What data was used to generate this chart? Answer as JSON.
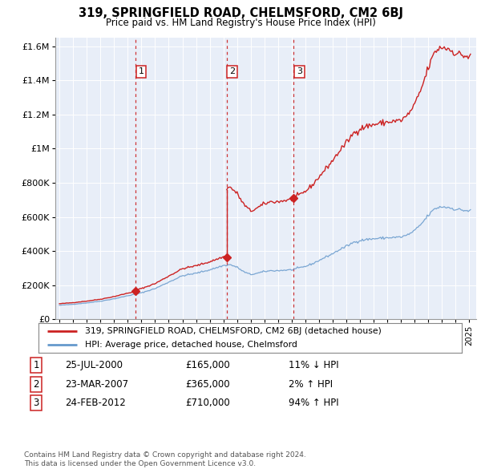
{
  "title": "319, SPRINGFIELD ROAD, CHELMSFORD, CM2 6BJ",
  "subtitle": "Price paid vs. HM Land Registry's House Price Index (HPI)",
  "legend_line1": "319, SPRINGFIELD ROAD, CHELMSFORD, CM2 6BJ (detached house)",
  "legend_line2": "HPI: Average price, detached house, Chelmsford",
  "footer1": "Contains HM Land Registry data © Crown copyright and database right 2024.",
  "footer2": "This data is licensed under the Open Government Licence v3.0.",
  "transactions": [
    {
      "num": 1,
      "date": "25-JUL-2000",
      "price": "£165,000",
      "hpi": "11% ↓ HPI",
      "year": 2000.57
    },
    {
      "num": 2,
      "date": "23-MAR-2007",
      "price": "£365,000",
      "hpi": "2% ↑ HPI",
      "year": 2007.23
    },
    {
      "num": 3,
      "date": "24-FEB-2012",
      "price": "£710,000",
      "hpi": "94% ↑ HPI",
      "year": 2012.15
    }
  ],
  "transaction_prices": [
    165000,
    365000,
    710000
  ],
  "hpi_color": "#6699cc",
  "price_color": "#cc2222",
  "dashed_color": "#cc2222",
  "chart_bg": "#e8eef8",
  "background_color": "#ffffff",
  "grid_color": "#ffffff",
  "ylim": [
    0,
    1650000
  ],
  "yticks": [
    0,
    200000,
    400000,
    600000,
    800000,
    1000000,
    1200000,
    1400000,
    1600000
  ],
  "xlim_start": 1994.7,
  "xlim_end": 2025.5,
  "xticks": [
    1995,
    1996,
    1997,
    1998,
    1999,
    2000,
    2001,
    2002,
    2003,
    2004,
    2005,
    2006,
    2007,
    2008,
    2009,
    2010,
    2011,
    2012,
    2013,
    2014,
    2015,
    2016,
    2017,
    2018,
    2019,
    2020,
    2021,
    2022,
    2023,
    2024,
    2025
  ]
}
